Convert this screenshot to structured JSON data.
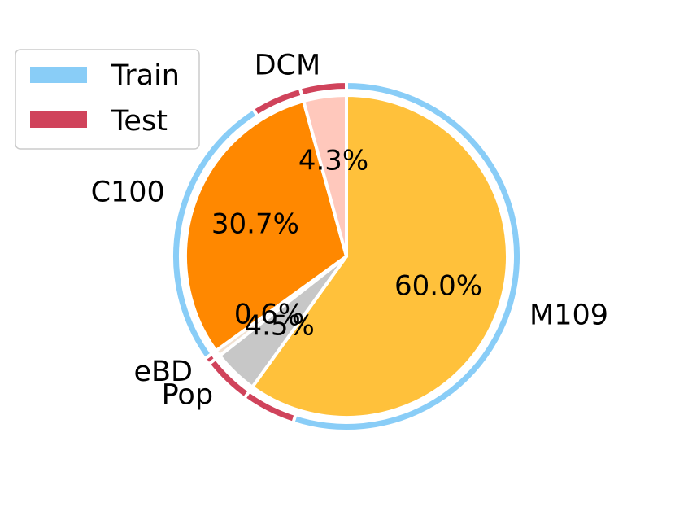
{
  "chart_data": {
    "type": "pie",
    "slices": [
      {
        "label": "M109",
        "value": 60.0,
        "pct_label": "60.0%",
        "color": "#FFC13B"
      },
      {
        "label": "Pop",
        "value": 4.5,
        "pct_label": "4.5%",
        "color": "#C7C7C7"
      },
      {
        "label": "eBD",
        "value": 0.6,
        "pct_label": "0.6%",
        "color": "#F0E0D0"
      },
      {
        "label": "C100",
        "value": 30.7,
        "pct_label": "30.7%",
        "color": "#FF8800"
      },
      {
        "label": "DCM",
        "value": 4.3,
        "pct_label": "4.3%",
        "color": "#FFC8BC"
      }
    ],
    "outer_ring": [
      {
        "split": "Train",
        "value": 55.0,
        "color": "#89CDF7"
      },
      {
        "split": "Test",
        "value": 5.0,
        "color": "#D0435B"
      },
      {
        "split": "Train",
        "value": 0.0,
        "color": "#89CDF7"
      },
      {
        "split": "Test",
        "value": 4.5,
        "color": "#D0435B"
      },
      {
        "split": "Train",
        "value": 0.0,
        "color": "#89CDF7"
      },
      {
        "split": "Test",
        "value": 0.6,
        "color": "#D0435B"
      },
      {
        "split": "Train",
        "value": 26.0,
        "color": "#89CDF7"
      },
      {
        "split": "Test",
        "value": 4.7,
        "color": "#D0435B"
      },
      {
        "split": "Train",
        "value": 0.0,
        "color": "#89CDF7"
      },
      {
        "split": "Test",
        "value": 4.3,
        "color": "#D0435B"
      }
    ],
    "start_angle_deg": 90,
    "direction": "clockwise",
    "legend": {
      "placement": "top-left",
      "entries": [
        {
          "label": "Train",
          "color": "#89CDF7"
        },
        {
          "label": "Test",
          "color": "#D0435B"
        }
      ]
    }
  }
}
